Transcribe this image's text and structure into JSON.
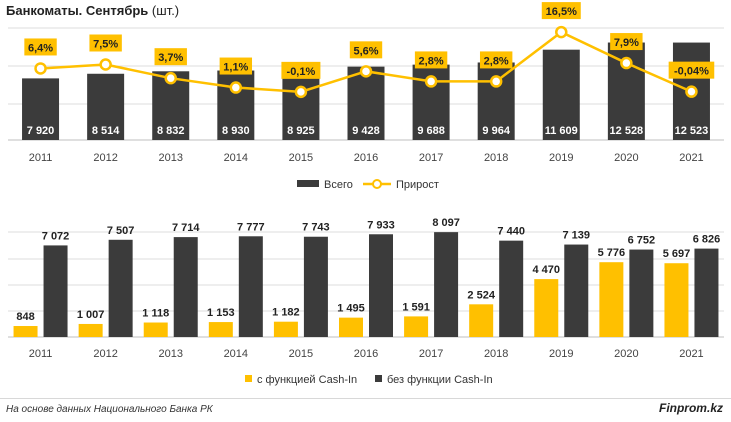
{
  "title_bold": "Банкоматы. Сентябрь",
  "title_unit": "(шт.)",
  "colors": {
    "dark": "#3b3b3b",
    "yellow": "#ffc000",
    "label_bg": "#ffc000",
    "grid": "#dcdcdc"
  },
  "chart_data": [
    {
      "type": "bar",
      "title": "Банкоматы. Сентябрь (шт.)",
      "categories": [
        "2011",
        "2012",
        "2013",
        "2014",
        "2015",
        "2016",
        "2017",
        "2018",
        "2019",
        "2020",
        "2021"
      ],
      "series": [
        {
          "name": "Всего",
          "type": "bar",
          "values": [
            7920,
            8514,
            8832,
            8930,
            8925,
            9428,
            9688,
            9964,
            11609,
            12528,
            12523
          ],
          "labels": [
            "7 920",
            "8 514",
            "8 832",
            "8 930",
            "8 925",
            "9 428",
            "9 688",
            "9 964",
            "11 609",
            "12 528",
            "12 523"
          ]
        },
        {
          "name": "Прирост",
          "type": "line",
          "values": [
            6.4,
            7.5,
            3.7,
            1.1,
            -0.1,
            5.6,
            2.8,
            2.8,
            16.5,
            7.9,
            -0.04
          ],
          "labels": [
            "6,4%",
            "7,5%",
            "3,7%",
            "1,1%",
            "-0,1%",
            "5,6%",
            "2,8%",
            "2,8%",
            "16,5%",
            "7,9%",
            "-0,04%"
          ]
        }
      ],
      "legend": [
        "Всего",
        "Прирост"
      ],
      "legend_position": "bottom",
      "grid": true
    },
    {
      "type": "bar",
      "categories": [
        "2011",
        "2012",
        "2013",
        "2014",
        "2015",
        "2016",
        "2017",
        "2018",
        "2019",
        "2020",
        "2021"
      ],
      "series": [
        {
          "name": "с функцией Cash-In",
          "values": [
            848,
            1007,
            1118,
            1153,
            1182,
            1495,
            1591,
            2524,
            4470,
            5776,
            5697
          ],
          "labels": [
            "848",
            "1 007",
            "1 118",
            "1 153",
            "1 182",
            "1 495",
            "1 591",
            "2 524",
            "4 470",
            "5 776",
            "5 697"
          ]
        },
        {
          "name": "без функции Cash-In",
          "values": [
            7072,
            7507,
            7714,
            7777,
            7743,
            7933,
            8097,
            7440,
            7139,
            6752,
            6826
          ],
          "labels": [
            "7 072",
            "7 507",
            "7 714",
            "7 777",
            "7 743",
            "7 933",
            "8 097",
            "7 440",
            "7 139",
            "6 752",
            "6 826"
          ]
        }
      ],
      "legend": [
        "с функцией Cash-In",
        "без функции Cash-In"
      ],
      "legend_position": "bottom",
      "grid": true
    }
  ],
  "footer": {
    "source": "На основе данных Национального Банка РК",
    "brand": "Finprom.kz"
  }
}
